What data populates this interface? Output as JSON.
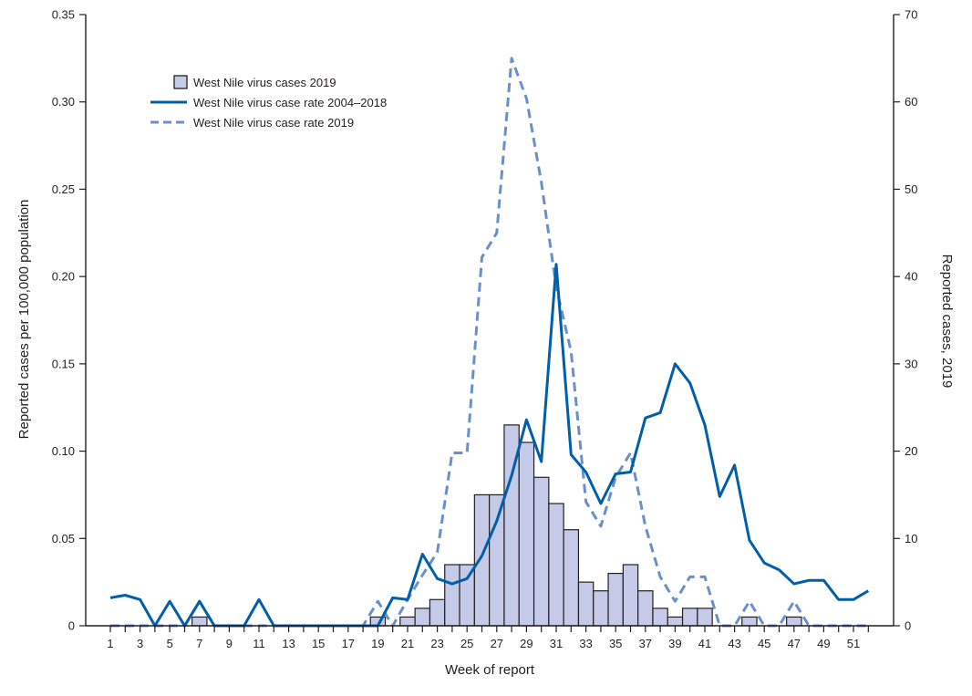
{
  "chart_data": {
    "type": "bar+line",
    "xlabel": "Week of report",
    "ylabel_left": "Reported cases per 100,000 population",
    "ylabel_right": "Reported cases, 2019",
    "ylim_left": [
      0,
      0.35
    ],
    "ylim_right": [
      0,
      70
    ],
    "xlim": [
      1,
      52
    ],
    "x_tick_labels": [
      "1",
      "3",
      "5",
      "7",
      "9",
      "11",
      "13",
      "15",
      "17",
      "19",
      "21",
      "23",
      "25",
      "27",
      "29",
      "31",
      "33",
      "35",
      "37",
      "39",
      "41",
      "43",
      "45",
      "47",
      "49",
      "51"
    ],
    "y_left_ticks": [
      "0",
      "0.05",
      "0.10",
      "0.15",
      "0.20",
      "0.25",
      "0.30",
      "0.35"
    ],
    "y_right_ticks": [
      "0",
      "10",
      "20",
      "30",
      "40",
      "50",
      "60",
      "70"
    ],
    "colors": {
      "bar_fill": "#c5cae9",
      "bar_stroke": "#231f20",
      "line_2004_2018": "#005eaa",
      "line_2019": "#6b8fcc",
      "axis": "#231f20"
    },
    "legend_position": "top-left",
    "series": [
      {
        "name": "West Nile virus cases 2019",
        "kind": "bar",
        "axis": "right",
        "x": [
          7,
          19,
          21,
          22,
          23,
          24,
          25,
          26,
          27,
          28,
          29,
          30,
          31,
          32,
          33,
          34,
          35,
          36,
          37,
          38,
          39,
          40,
          41,
          44,
          47
        ],
        "values": [
          1,
          1,
          1,
          2,
          3,
          7,
          7,
          15,
          15,
          23,
          21,
          17,
          14,
          11,
          5,
          4,
          6,
          7,
          4,
          2,
          1,
          2,
          2,
          1,
          1
        ]
      },
      {
        "name": "West Nile virus case rate 2004–2018",
        "kind": "line",
        "axis": "left",
        "style": "solid",
        "x": [
          1,
          2,
          3,
          4,
          5,
          6,
          7,
          8,
          9,
          10,
          11,
          12,
          13,
          14,
          15,
          16,
          17,
          18,
          19,
          20,
          21,
          22,
          23,
          24,
          25,
          26,
          27,
          28,
          29,
          30,
          31,
          32,
          33,
          34,
          35,
          36,
          37,
          38,
          39,
          40,
          41,
          42,
          43,
          44,
          45,
          46,
          47,
          48,
          49,
          50,
          51,
          52
        ],
        "values": [
          0.016,
          0.0175,
          0.015,
          0.0,
          0.014,
          0.0,
          0.014,
          0.0,
          0.0,
          0.0,
          0.015,
          0.0,
          0.0,
          0.0,
          0.0,
          0.0,
          0.0,
          0.0,
          0.0,
          0.016,
          0.015,
          0.041,
          0.027,
          0.024,
          0.027,
          0.04,
          0.06,
          0.086,
          0.118,
          0.094,
          0.207,
          0.098,
          0.088,
          0.07,
          0.087,
          0.088,
          0.119,
          0.122,
          0.15,
          0.139,
          0.115,
          0.074,
          0.092,
          0.049,
          0.036,
          0.032,
          0.024,
          0.026,
          0.026,
          0.015,
          0.015,
          0.02
        ]
      },
      {
        "name": "West Nile virus case rate 2019",
        "kind": "line",
        "axis": "left",
        "style": "dashed",
        "x": [
          1,
          2,
          3,
          4,
          5,
          6,
          7,
          8,
          9,
          10,
          11,
          12,
          13,
          14,
          15,
          16,
          17,
          18,
          19,
          20,
          21,
          22,
          23,
          24,
          25,
          26,
          27,
          28,
          29,
          30,
          31,
          32,
          33,
          34,
          35,
          36,
          37,
          38,
          39,
          40,
          41,
          42,
          43,
          44,
          45,
          46,
          47,
          48,
          49,
          50,
          51,
          52
        ],
        "values": [
          0.0,
          0.0,
          0.0,
          0.0,
          0.0,
          0.0,
          0.014,
          0.0,
          0.0,
          0.0,
          0.0,
          0.0,
          0.0,
          0.0,
          0.0,
          0.0,
          0.0,
          0.0,
          0.014,
          0.0,
          0.015,
          0.029,
          0.042,
          0.099,
          0.099,
          0.211,
          0.225,
          0.325,
          0.302,
          0.254,
          0.194,
          0.157,
          0.071,
          0.057,
          0.085,
          0.099,
          0.057,
          0.028,
          0.014,
          0.028,
          0.028,
          0.0,
          0.0,
          0.014,
          0.0,
          0.0,
          0.014,
          0.0,
          0.0,
          0.0,
          0.0,
          0.0
        ]
      }
    ]
  }
}
